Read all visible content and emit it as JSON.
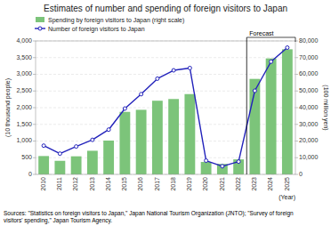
{
  "chart_data": {
    "type": "bar",
    "title": "Estimates of number and spending of foreign visitors to Japan",
    "ylabel": "(10 thousand people)",
    "y2label": "(100 million yen)",
    "xlabel": "(Year)",
    "source": "Sources: \"Statistics on foreign visitors to Japan,\" Japan National Tourism Organization (JNTO); \"Survey of foreign\nvisitors' spending,\" Japan Tourism Agency.",
    "categories": [
      2010,
      2011,
      2012,
      2013,
      2014,
      2015,
      2016,
      2017,
      2018,
      2019,
      2020,
      2021,
      2022,
      2023,
      2024,
      2025
    ],
    "series": [
      {
        "name": "Spending by foreign visitors to Japan (right scale)",
        "type": "bar",
        "axis": "y2",
        "color": "#7cc47a",
        "values": [
          11000,
          8135,
          10846,
          14167,
          20278,
          37476,
          38711,
          44161,
          45189,
          48135,
          7446,
          6286,
          9000,
          57244,
          69531,
          75000
        ]
      },
      {
        "name": "Number of foreign visitors to Japan",
        "type": "line",
        "color": "#2222bb",
        "marker": "circle",
        "values": [
          861,
          622,
          836,
          1036,
          1341,
          1974,
          2404,
          2869,
          3119,
          3188,
          412,
          245,
          383,
          2507,
          3380,
          3800
        ]
      }
    ],
    "ylim": [
      0,
      4000
    ],
    "yticks": [
      0,
      500,
      {
        "value": 1000,
        "label": "1,000"
      },
      {
        "value": 1500,
        "label": "1,500"
      },
      {
        "value": 2000,
        "label": "2,000"
      },
      {
        "value": 2500,
        "label": "2,500"
      },
      {
        "value": 3000,
        "label": "3,000"
      },
      {
        "value": 3500,
        "label": "3,500"
      },
      {
        "value": 4000,
        "label": "4,000"
      }
    ],
    "y2lim": [
      0,
      80000
    ],
    "y2ticks": [
      0,
      {
        "value": 10000,
        "label": "10,000"
      },
      {
        "value": 20000,
        "label": "20,000"
      },
      {
        "value": 30000,
        "label": "30,000"
      },
      {
        "value": 40000,
        "label": "40,000"
      },
      {
        "value": 50000,
        "label": "50,000"
      },
      {
        "value": 60000,
        "label": "60,000"
      },
      {
        "value": 70000,
        "label": "70,000"
      },
      {
        "value": 80000,
        "label": "80,000"
      }
    ],
    "annotations": [
      {
        "text": "Forecast",
        "x": 2023
      }
    ],
    "grid": true,
    "legend": "upper left"
  }
}
